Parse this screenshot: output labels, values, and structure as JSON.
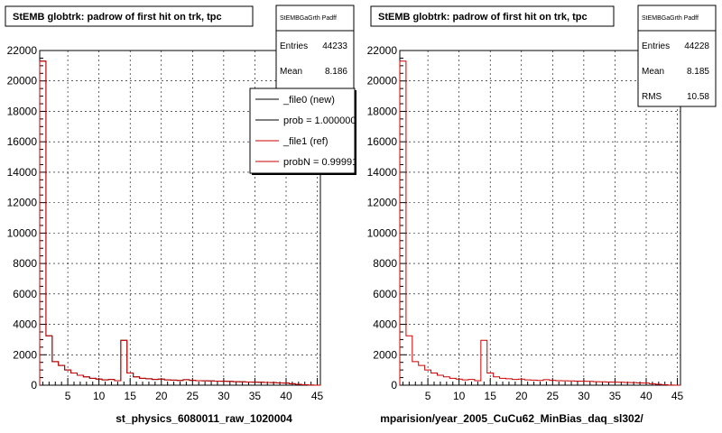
{
  "panels": [
    {
      "title": "StEMB globtrk: padrow of first hit on trk, tpc",
      "xtitle": "st_physics_6080011_raw_1020004",
      "stats": {
        "name": "StEMBGaGrth Padff",
        "rows": [
          {
            "label": "Entries",
            "value": "44233"
          },
          {
            "label": "Mean",
            "value": "8.186"
          }
        ]
      },
      "legend": [
        {
          "label": "_file0 (new)",
          "color": "#000000"
        },
        {
          "label": "prob = 1.000000",
          "color": "#000000"
        },
        {
          "label": "_file1 (ref)",
          "color": "#cc0000"
        },
        {
          "label": "probN = 0.99991",
          "color": "#cc0000"
        }
      ]
    },
    {
      "title": "StEMB globtrk: padrow of first hit on trk, tpc",
      "xtitle": "mparision/year_2005_CuCu62_MinBias_daq_sl302/",
      "stats": {
        "name": "StEMBGaGrth Padff",
        "rows": [
          {
            "label": "Entries",
            "value": "44228"
          },
          {
            "label": "Mean",
            "value": "8.185"
          },
          {
            "label": "RMS",
            "value": "10.58"
          }
        ]
      },
      "legend": []
    }
  ],
  "chart_data": [
    {
      "type": "bar",
      "title": "StEMB globtrk: padrow of first hit on trk, tpc",
      "xlabel": "st_physics_6080011_raw_1020004",
      "ylabel": "",
      "xlim": [
        0.5,
        45.5
      ],
      "ylim": [
        0,
        22000
      ],
      "grid": true,
      "xticks": [
        5,
        10,
        15,
        20,
        25,
        30,
        35,
        40,
        45
      ],
      "yticks": [
        0,
        2000,
        4000,
        6000,
        8000,
        10000,
        12000,
        14000,
        16000,
        18000,
        20000,
        22000
      ],
      "legend_position": "top-right",
      "x": [
        1,
        2,
        3,
        4,
        5,
        6,
        7,
        8,
        9,
        10,
        11,
        12,
        13,
        14,
        15,
        16,
        17,
        18,
        19,
        20,
        21,
        22,
        23,
        24,
        25,
        26,
        27,
        28,
        29,
        30,
        31,
        32,
        33,
        34,
        35,
        36,
        37,
        38,
        39,
        40,
        41,
        42,
        43,
        44,
        45
      ],
      "series": [
        {
          "name": "_file0 (new)",
          "color": "#000000",
          "values": [
            21300,
            3250,
            1550,
            1300,
            1000,
            800,
            650,
            550,
            450,
            400,
            350,
            380,
            300,
            2950,
            800,
            550,
            450,
            420,
            380,
            400,
            350,
            330,
            310,
            360,
            320,
            300,
            290,
            280,
            270,
            260,
            250,
            230,
            220,
            210,
            200,
            190,
            180,
            170,
            150,
            140,
            100,
            60,
            30,
            10,
            0
          ]
        },
        {
          "name": "_file1 (ref)",
          "color": "#cc0000",
          "values": [
            21300,
            3250,
            1550,
            1300,
            1000,
            800,
            650,
            550,
            450,
            400,
            350,
            380,
            300,
            2950,
            800,
            550,
            450,
            420,
            380,
            400,
            350,
            330,
            310,
            360,
            320,
            300,
            290,
            280,
            270,
            260,
            250,
            230,
            220,
            210,
            200,
            190,
            180,
            170,
            150,
            140,
            100,
            60,
            30,
            10,
            0
          ]
        }
      ]
    },
    {
      "type": "bar",
      "title": "StEMB globtrk: padrow of first hit on trk, tpc",
      "xlabel": "mparision/year_2005_CuCu62_MinBias_daq_sl302/",
      "ylabel": "",
      "xlim": [
        0.5,
        45.5
      ],
      "ylim": [
        0,
        22000
      ],
      "grid": true,
      "xticks": [
        5,
        10,
        15,
        20,
        25,
        30,
        35,
        40,
        45
      ],
      "yticks": [
        0,
        2000,
        4000,
        6000,
        8000,
        10000,
        12000,
        14000,
        16000,
        18000,
        20000,
        22000
      ],
      "x": [
        1,
        2,
        3,
        4,
        5,
        6,
        7,
        8,
        9,
        10,
        11,
        12,
        13,
        14,
        15,
        16,
        17,
        18,
        19,
        20,
        21,
        22,
        23,
        24,
        25,
        26,
        27,
        28,
        29,
        30,
        31,
        32,
        33,
        34,
        35,
        36,
        37,
        38,
        39,
        40,
        41,
        42,
        43,
        44,
        45
      ],
      "series": [
        {
          "color": "#cc0000",
          "values": [
            21300,
            3250,
            1550,
            1300,
            1000,
            800,
            650,
            550,
            450,
            400,
            350,
            380,
            300,
            2950,
            800,
            550,
            450,
            420,
            380,
            400,
            350,
            330,
            310,
            360,
            320,
            300,
            290,
            280,
            270,
            260,
            250,
            230,
            220,
            210,
            200,
            190,
            180,
            170,
            150,
            140,
            100,
            60,
            30,
            10,
            0
          ]
        }
      ]
    }
  ]
}
